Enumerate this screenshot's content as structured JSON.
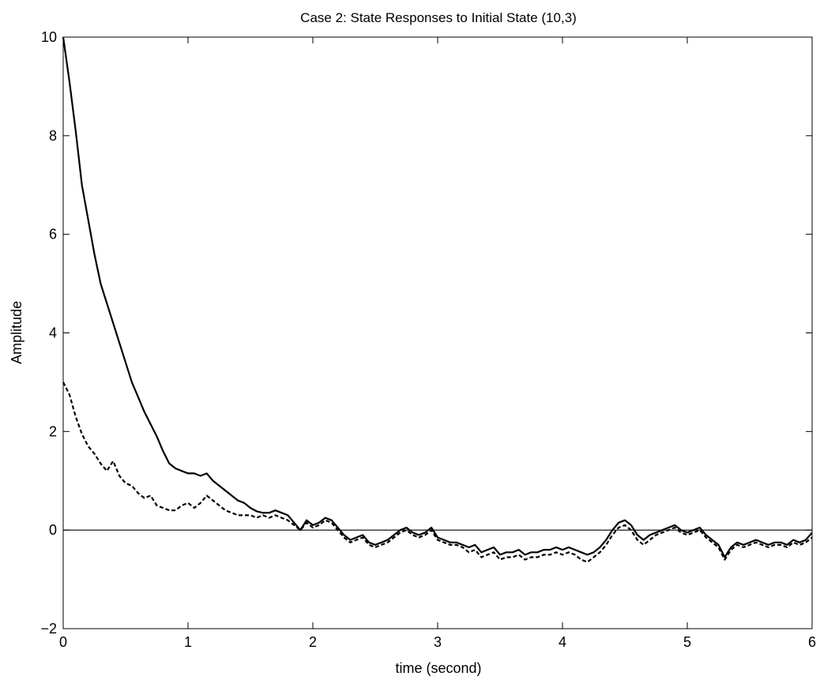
{
  "chart_data": {
    "type": "line",
    "title": "Case 2: State Responses to Initial State (10,3)",
    "xlabel": "time (second)",
    "ylabel": "Amplitude",
    "xlim": [
      0,
      6
    ],
    "ylim": [
      -2,
      10
    ],
    "xticks": [
      0,
      1,
      2,
      3,
      4,
      5,
      6
    ],
    "xtick_labels": [
      "0",
      "1",
      "2",
      "3",
      "4",
      "5",
      "6"
    ],
    "yticks": [
      -2,
      0,
      2,
      4,
      6,
      8,
      10
    ],
    "ytick_labels": [
      "−2",
      "0",
      "2",
      "4",
      "6",
      "8",
      "10"
    ],
    "grid": false,
    "reference_line_y": 0,
    "series": [
      {
        "style": "solid",
        "x": [
          0,
          0.05,
          0.1,
          0.15,
          0.2,
          0.25,
          0.3,
          0.35,
          0.4,
          0.45,
          0.5,
          0.55,
          0.6,
          0.65,
          0.7,
          0.75,
          0.8,
          0.85,
          0.9,
          0.95,
          1.0,
          1.05,
          1.1,
          1.15,
          1.2,
          1.25,
          1.3,
          1.35,
          1.4,
          1.45,
          1.5,
          1.55,
          1.6,
          1.65,
          1.7,
          1.75,
          1.8,
          1.85,
          1.9,
          1.95,
          2.0,
          2.05,
          2.1,
          2.15,
          2.2,
          2.25,
          2.3,
          2.35,
          2.4,
          2.45,
          2.5,
          2.55,
          2.6,
          2.65,
          2.7,
          2.75,
          2.8,
          2.85,
          2.9,
          2.95,
          3.0,
          3.05,
          3.1,
          3.15,
          3.2,
          3.25,
          3.3,
          3.35,
          3.4,
          3.45,
          3.5,
          3.55,
          3.6,
          3.65,
          3.7,
          3.75,
          3.8,
          3.85,
          3.9,
          3.95,
          4.0,
          4.05,
          4.1,
          4.15,
          4.2,
          4.25,
          4.3,
          4.35,
          4.4,
          4.45,
          4.5,
          4.55,
          4.6,
          4.65,
          4.7,
          4.75,
          4.8,
          4.85,
          4.9,
          4.95,
          5.0,
          5.05,
          5.1,
          5.15,
          5.2,
          5.25,
          5.3,
          5.35,
          5.4,
          5.45,
          5.5,
          5.55,
          5.6,
          5.65,
          5.7,
          5.75,
          5.8,
          5.85,
          5.9,
          5.95,
          6.0
        ],
        "y": [
          10.0,
          9.1,
          8.1,
          7.0,
          6.3,
          5.6,
          5.0,
          4.6,
          4.2,
          3.8,
          3.4,
          3.0,
          2.7,
          2.4,
          2.15,
          1.9,
          1.6,
          1.35,
          1.25,
          1.2,
          1.15,
          1.15,
          1.1,
          1.15,
          1.0,
          0.9,
          0.8,
          0.7,
          0.6,
          0.55,
          0.45,
          0.38,
          0.35,
          0.35,
          0.4,
          0.35,
          0.3,
          0.15,
          0.0,
          0.2,
          0.1,
          0.15,
          0.25,
          0.2,
          0.05,
          -0.1,
          -0.2,
          -0.15,
          -0.1,
          -0.25,
          -0.3,
          -0.25,
          -0.2,
          -0.1,
          0.0,
          0.05,
          -0.05,
          -0.1,
          -0.05,
          0.05,
          -0.15,
          -0.2,
          -0.25,
          -0.25,
          -0.3,
          -0.35,
          -0.3,
          -0.45,
          -0.4,
          -0.35,
          -0.5,
          -0.45,
          -0.45,
          -0.4,
          -0.5,
          -0.45,
          -0.45,
          -0.4,
          -0.4,
          -0.35,
          -0.4,
          -0.35,
          -0.4,
          -0.45,
          -0.5,
          -0.45,
          -0.35,
          -0.2,
          0.0,
          0.15,
          0.2,
          0.1,
          -0.1,
          -0.2,
          -0.1,
          -0.05,
          0.0,
          0.05,
          0.1,
          0.0,
          -0.05,
          0.0,
          0.05,
          -0.1,
          -0.2,
          -0.3,
          -0.55,
          -0.35,
          -0.25,
          -0.3,
          -0.25,
          -0.2,
          -0.25,
          -0.3,
          -0.25,
          -0.25,
          -0.3,
          -0.2,
          -0.25,
          -0.2,
          -0.05
        ]
      },
      {
        "style": "dashed",
        "x": [
          0,
          0.05,
          0.1,
          0.15,
          0.2,
          0.25,
          0.3,
          0.35,
          0.4,
          0.45,
          0.5,
          0.55,
          0.6,
          0.65,
          0.7,
          0.75,
          0.8,
          0.85,
          0.9,
          0.95,
          1.0,
          1.05,
          1.1,
          1.15,
          1.2,
          1.25,
          1.3,
          1.35,
          1.4,
          1.45,
          1.5,
          1.55,
          1.6,
          1.65,
          1.7,
          1.75,
          1.8,
          1.85,
          1.9,
          1.95,
          2.0,
          2.05,
          2.1,
          2.15,
          2.2,
          2.25,
          2.3,
          2.35,
          2.4,
          2.45,
          2.5,
          2.55,
          2.6,
          2.65,
          2.7,
          2.75,
          2.8,
          2.85,
          2.9,
          2.95,
          3.0,
          3.05,
          3.1,
          3.15,
          3.2,
          3.25,
          3.3,
          3.35,
          3.4,
          3.45,
          3.5,
          3.55,
          3.6,
          3.65,
          3.7,
          3.75,
          3.8,
          3.85,
          3.9,
          3.95,
          4.0,
          4.05,
          4.1,
          4.15,
          4.2,
          4.25,
          4.3,
          4.35,
          4.4,
          4.45,
          4.5,
          4.55,
          4.6,
          4.65,
          4.7,
          4.75,
          4.8,
          4.85,
          4.9,
          4.95,
          5.0,
          5.05,
          5.1,
          5.15,
          5.2,
          5.25,
          5.3,
          5.35,
          5.4,
          5.45,
          5.5,
          5.55,
          5.6,
          5.65,
          5.7,
          5.75,
          5.8,
          5.85,
          5.9,
          5.95,
          6.0
        ],
        "y": [
          3.0,
          2.75,
          2.3,
          1.95,
          1.7,
          1.55,
          1.35,
          1.2,
          1.4,
          1.1,
          0.95,
          0.9,
          0.75,
          0.65,
          0.7,
          0.5,
          0.45,
          0.4,
          0.4,
          0.5,
          0.55,
          0.45,
          0.55,
          0.7,
          0.6,
          0.5,
          0.4,
          0.35,
          0.3,
          0.3,
          0.3,
          0.25,
          0.3,
          0.25,
          0.3,
          0.25,
          0.2,
          0.1,
          0.0,
          0.15,
          0.05,
          0.1,
          0.2,
          0.15,
          0.0,
          -0.15,
          -0.25,
          -0.2,
          -0.15,
          -0.3,
          -0.35,
          -0.3,
          -0.25,
          -0.15,
          -0.05,
          0.0,
          -0.1,
          -0.15,
          -0.1,
          0.0,
          -0.2,
          -0.25,
          -0.3,
          -0.3,
          -0.35,
          -0.45,
          -0.4,
          -0.55,
          -0.5,
          -0.45,
          -0.6,
          -0.55,
          -0.55,
          -0.5,
          -0.6,
          -0.55,
          -0.55,
          -0.5,
          -0.5,
          -0.45,
          -0.5,
          -0.45,
          -0.5,
          -0.6,
          -0.65,
          -0.55,
          -0.45,
          -0.3,
          -0.1,
          0.05,
          0.1,
          0.0,
          -0.2,
          -0.3,
          -0.2,
          -0.1,
          -0.05,
          0.0,
          0.05,
          -0.05,
          -0.1,
          -0.05,
          0.0,
          -0.15,
          -0.25,
          -0.35,
          -0.6,
          -0.4,
          -0.3,
          -0.35,
          -0.3,
          -0.25,
          -0.3,
          -0.35,
          -0.3,
          -0.3,
          -0.35,
          -0.25,
          -0.3,
          -0.25,
          -0.15
        ]
      }
    ]
  }
}
